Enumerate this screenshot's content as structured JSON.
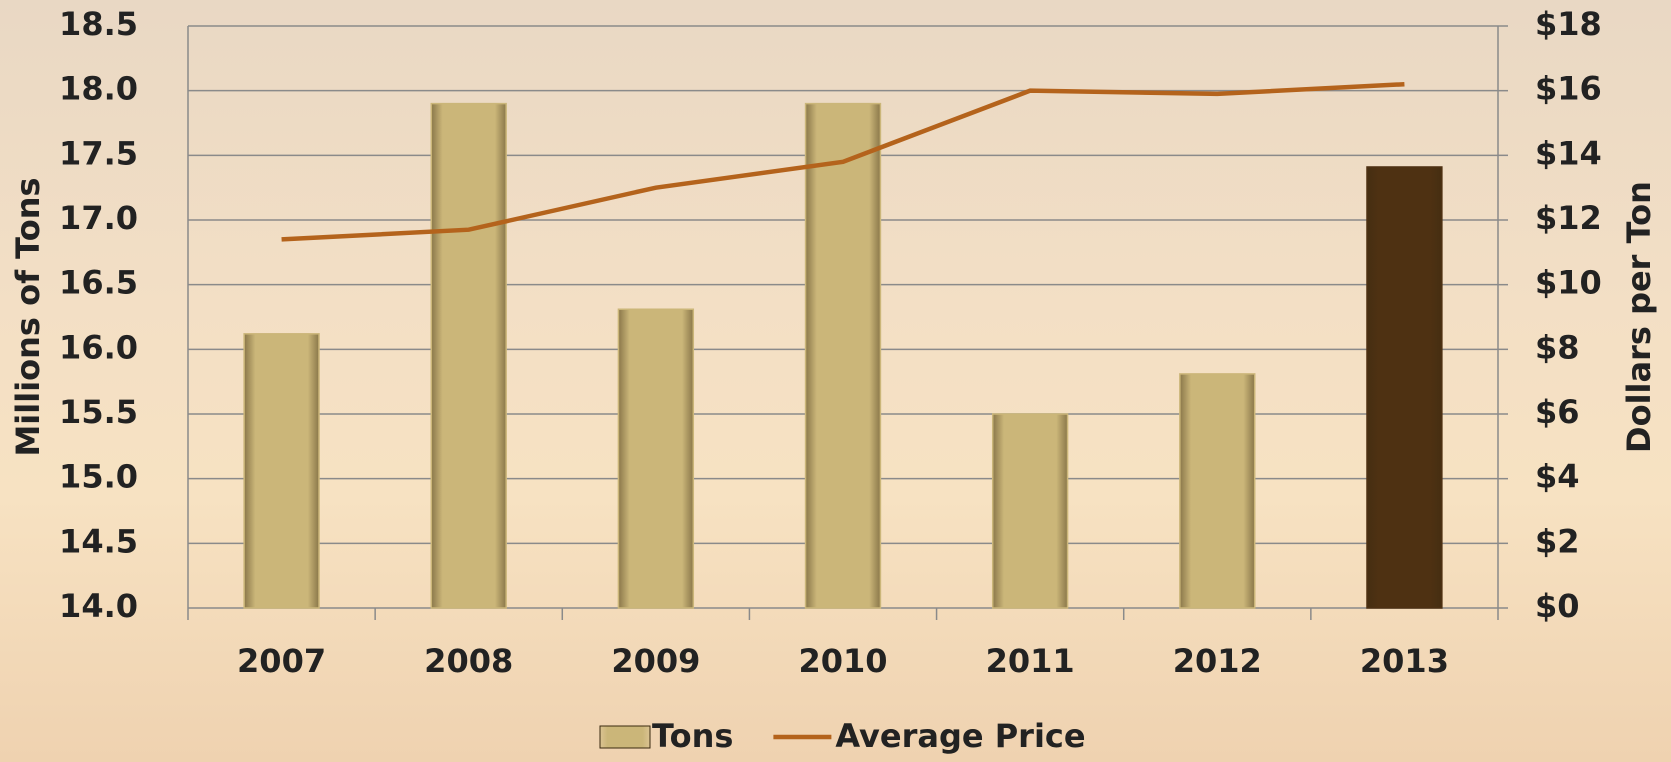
{
  "chart_data": {
    "type": "bar-line",
    "categories": [
      "2007",
      "2008",
      "2009",
      "2010",
      "2011",
      "2012",
      "2013"
    ],
    "series": [
      {
        "name": "Tons",
        "type": "bar",
        "color": "#cbb679",
        "colors": [
          "#cbb679",
          "#cbb679",
          "#cbb679",
          "#cbb679",
          "#cbb679",
          "#cbb679",
          "#4e3112"
        ],
        "values": [
          16.12,
          17.9,
          16.31,
          17.9,
          15.5,
          15.81,
          17.41
        ]
      },
      {
        "name": "Average Price",
        "type": "line",
        "axis": "y2",
        "color": "#b4631c",
        "values": [
          11.4,
          11.7,
          13.0,
          13.8,
          16.0,
          15.9,
          16.2
        ]
      }
    ],
    "y_label": "Millions of Tons",
    "y2_label": "Dollars per Ton",
    "ylim": [
      14,
      18.5
    ],
    "yticks": [
      {
        "value": 14,
        "label": "14.0"
      },
      14.5,
      {
        "value": 15,
        "label": "15.0"
      },
      15.5,
      {
        "value": 16,
        "label": "16.0"
      },
      16.5,
      {
        "value": 17,
        "label": "17.0"
      },
      17.5,
      {
        "value": 18,
        "label": "18.0"
      },
      18.5
    ],
    "y2lim": [
      0,
      18
    ],
    "y2ticks": [
      {
        "value": 0,
        "label": "$0"
      },
      {
        "value": 2,
        "label": "$2"
      },
      {
        "value": 4,
        "label": "$4"
      },
      {
        "value": 6,
        "label": "$6"
      },
      {
        "value": 8,
        "label": "$8"
      },
      {
        "value": 10,
        "label": "$10"
      },
      {
        "value": 12,
        "label": "$12"
      },
      {
        "value": 14,
        "label": "$14"
      },
      {
        "value": 16,
        "label": "$16"
      },
      {
        "value": 18,
        "label": "$18"
      }
    ],
    "grid": true,
    "legend": "bottom"
  }
}
